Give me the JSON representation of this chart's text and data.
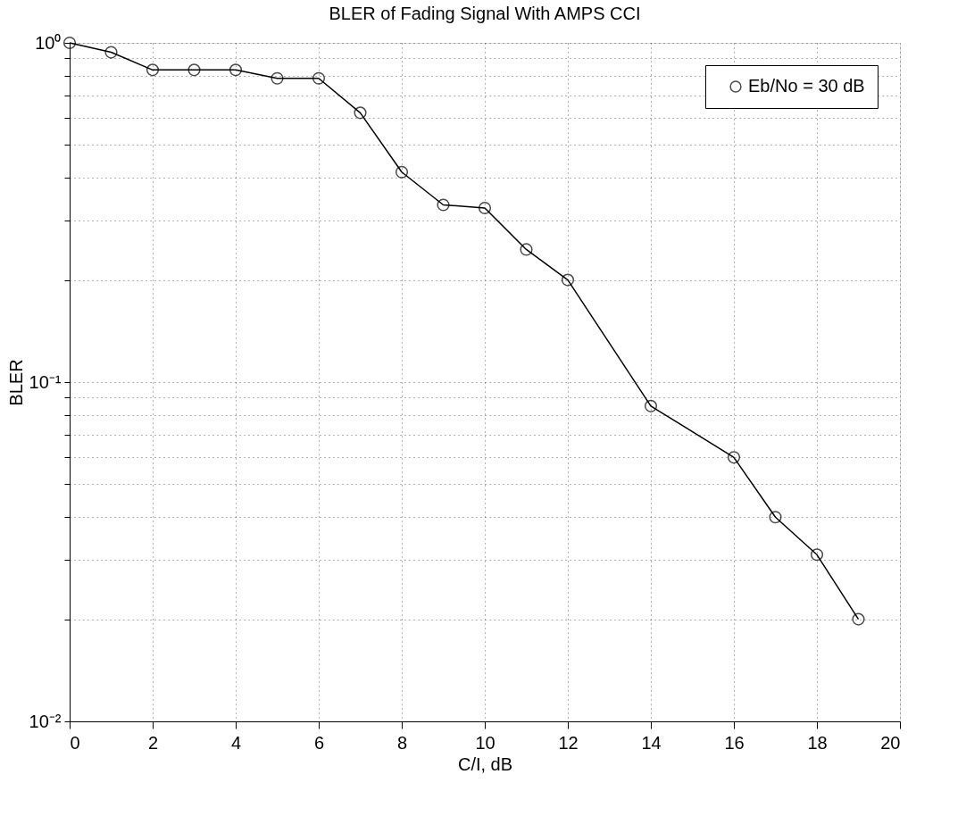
{
  "chart_data": {
    "type": "line",
    "title": "BLER of Fading Signal With AMPS CCI",
    "xlabel": "C/I, dB",
    "ylabel": "BLER",
    "x": [
      0,
      1,
      2,
      3,
      4,
      5,
      6,
      7,
      8,
      9,
      10,
      11,
      12,
      14,
      16,
      17,
      18,
      19
    ],
    "series": [
      {
        "name": "Eb/No = 30 dB",
        "color": "#000000",
        "values": [
          1,
          0.938,
          0.832,
          0.832,
          0.832,
          0.786,
          0.786,
          0.622,
          0.416,
          0.333,
          0.326,
          0.246,
          0.2,
          0.085,
          0.06,
          0.04,
          0.031,
          0.02
        ]
      }
    ],
    "log": "y",
    "xlim": [
      0,
      20
    ],
    "xticks": [
      0,
      2,
      4,
      6,
      8,
      10,
      12,
      14,
      16,
      18,
      20
    ],
    "ylim": [
      0.01,
      1
    ],
    "yticks": [
      {
        "value": 0.01,
        "label": "10⁻²"
      },
      {
        "value": 0.02,
        "label": null
      },
      {
        "value": 0.03,
        "label": null
      },
      {
        "value": 0.04,
        "label": null
      },
      {
        "value": 0.05,
        "label": null
      },
      {
        "value": 0.06,
        "label": null
      },
      {
        "value": 0.07,
        "label": null
      },
      {
        "value": 0.08,
        "label": null
      },
      {
        "value": 0.09,
        "label": null
      },
      {
        "value": 0.1,
        "label": "10⁻¹"
      },
      {
        "value": 0.2,
        "label": null
      },
      {
        "value": 0.3,
        "label": null
      },
      {
        "value": 0.4,
        "label": null
      },
      {
        "value": 0.5,
        "label": null
      },
      {
        "value": 0.6,
        "label": null
      },
      {
        "value": 0.7,
        "label": null
      },
      {
        "value": 0.8,
        "label": null
      },
      {
        "value": 0.9,
        "label": null
      },
      {
        "value": 1,
        "label": "10⁰"
      }
    ],
    "grid": true,
    "legend": "top right",
    "marker": "circle",
    "line_style": "solid"
  }
}
